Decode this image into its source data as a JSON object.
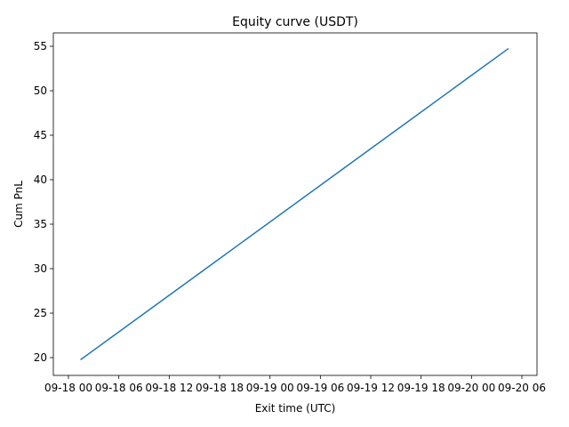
{
  "chart_data": {
    "type": "line",
    "title": "Equity curve (USDT)",
    "xlabel": "Exit time (UTC)",
    "ylabel": "Cum PnL",
    "xlim": [
      "2023-09-17 22:12",
      "2023-09-20 07:48"
    ],
    "ylim": [
      18.0,
      56.5
    ],
    "x_ticks": [
      "2023-09-18 00:00",
      "2023-09-18 06:00",
      "2023-09-18 12:00",
      "2023-09-18 18:00",
      "2023-09-19 00:00",
      "2023-09-19 06:00",
      "2023-09-19 12:00",
      "2023-09-19 18:00",
      "2023-09-20 00:00",
      "2023-09-20 06:00"
    ],
    "x_tick_labels": [
      "09-18 00",
      "09-18 06",
      "09-18 12",
      "09-18 18",
      "09-19 00",
      "09-19 06",
      "09-19 12",
      "09-19 18",
      "09-20 00",
      "09-20 06"
    ],
    "y_ticks": [
      20,
      25,
      30,
      35,
      40,
      45,
      50,
      55
    ],
    "grid": false,
    "color": "#1f77b4",
    "series": [
      {
        "name": "",
        "x": [
          "2023-09-18 01:30",
          "2023-09-20 04:20"
        ],
        "y": [
          19.8,
          54.7
        ]
      }
    ]
  }
}
